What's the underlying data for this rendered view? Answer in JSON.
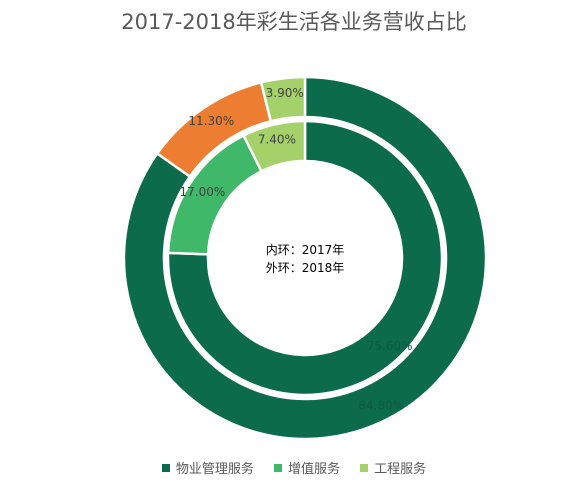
{
  "chart_data": {
    "type": "pie",
    "title": "2017-2018年彩生活各业务营收占比",
    "center_text": [
      "内环：2017年",
      "外环：2018年"
    ],
    "categories": [
      "物业管理服务",
      "增值服务",
      "工程服务"
    ],
    "colors": [
      "#0b6b4a",
      "#40b86a",
      "#a5d16b"
    ],
    "outer_extra_color": "#ed7d31",
    "series": [
      {
        "ring": "inner",
        "year": "2017年",
        "values": [
          75.6,
          17.0,
          7.4
        ],
        "labels": [
          "75.60%",
          "17.00%",
          "7.40%"
        ]
      },
      {
        "ring": "outer",
        "year": "2018年",
        "values": [
          84.8,
          11.3,
          3.9
        ],
        "labels": [
          "84.80%",
          "11.30%",
          "3.90%"
        ],
        "slice_colors": [
          "#0b6b4a",
          "#ed7d31",
          "#a5d16b"
        ]
      }
    ],
    "legend_position": "bottom"
  }
}
